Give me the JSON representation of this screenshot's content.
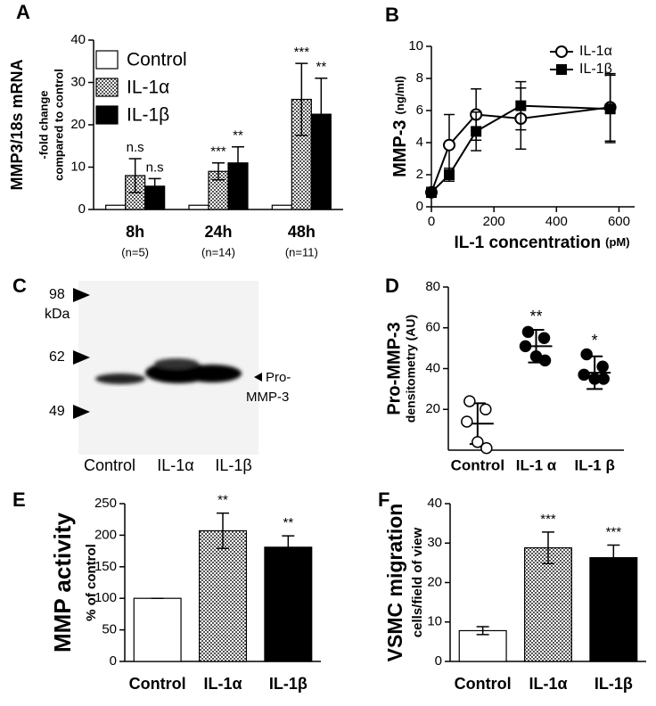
{
  "chart_data": [
    {
      "type": "bar",
      "panel": "A",
      "ylabel": [
        "MMP3/18s mRNA",
        "-fold change",
        "compared to control"
      ],
      "categories": [
        "8h",
        "24h",
        "48h"
      ],
      "sublabels": [
        "(n=5)",
        "(n=14)",
        "(n=11)"
      ],
      "series": [
        {
          "name": "Control",
          "color": "#ffffff",
          "values": [
            1,
            1,
            1
          ]
        },
        {
          "name": "IL-1α",
          "color": "#9a9a9a",
          "pattern": "checker",
          "values": [
            8,
            9,
            26
          ],
          "errors": [
            4,
            2,
            8.5
          ],
          "annotations": [
            "n.s",
            "***",
            "***"
          ]
        },
        {
          "name": "IL-1β",
          "color": "#000000",
          "values": [
            5.5,
            11,
            22.5
          ],
          "errors": [
            1.8,
            3.8,
            8.5
          ],
          "annotations": [
            "n.s",
            "**",
            "**"
          ]
        }
      ],
      "ylim": [
        0,
        40
      ],
      "yticks": [
        0,
        10,
        20,
        30,
        40
      ],
      "legend": "top-left"
    },
    {
      "type": "line",
      "panel": "B",
      "ylabel": [
        "MMP-3",
        "(ng/ml)"
      ],
      "xlabel": [
        "IL-1 concentration",
        "(pM)"
      ],
      "x": [
        0,
        57,
        143,
        286,
        572
      ],
      "series": [
        {
          "name": "IL-1α",
          "color": "#000000",
          "marker": "circle-open",
          "values": [
            0.9,
            3.85,
            5.75,
            5.5,
            6.2
          ],
          "errors": [
            0.3,
            1.9,
            1.6,
            1.9,
            2.1
          ]
        },
        {
          "name": "IL-1β",
          "color": "#000000",
          "marker": "square",
          "values": [
            0.9,
            2.0,
            4.7,
            6.3,
            6.1
          ],
          "errors": [
            0.3,
            0.4,
            1.2,
            1.5,
            2.1
          ]
        }
      ],
      "xlim": [
        0,
        650
      ],
      "xticks": [
        0,
        200,
        400,
        600
      ],
      "ylim": [
        0,
        10
      ],
      "yticks": [
        0,
        2,
        4,
        6,
        8,
        10
      ],
      "legend": "top-right"
    },
    {
      "type": "dot",
      "panel": "D",
      "ylabel": [
        "Pro-MMP-3",
        "densitometry (AU)"
      ],
      "categories": [
        "Control",
        "IL-1 α",
        "IL-1 β"
      ],
      "points": [
        [
          24,
          20,
          14,
          4,
          1
        ],
        [
          58,
          55,
          51,
          46,
          44
        ],
        [
          47,
          41,
          37,
          35,
          35
        ]
      ],
      "fills": [
        "#ffffff",
        "#000000",
        "#000000"
      ],
      "means": [
        13,
        51,
        38
      ],
      "sds": [
        10,
        8,
        8
      ],
      "annotations": [
        null,
        "**",
        "*"
      ],
      "ylim": [
        0,
        80
      ],
      "yticks": [
        20,
        40,
        60,
        80
      ]
    },
    {
      "type": "bar",
      "panel": "E",
      "ylabel": [
        "MMP activity",
        "% of control"
      ],
      "categories": [
        "Control",
        "IL-1α",
        "IL-1β"
      ],
      "values": [
        100,
        207,
        181
      ],
      "errors": [
        0,
        28,
        18
      ],
      "annotations": [
        null,
        "**",
        "**"
      ],
      "bar_styles": [
        {
          "color": "#ffffff"
        },
        {
          "color": "#9a9a9a",
          "pattern": "checker"
        },
        {
          "color": "#000000"
        }
      ],
      "ylim": [
        0,
        250
      ],
      "yticks": [
        0,
        50,
        100,
        150,
        200,
        250
      ]
    },
    {
      "type": "bar",
      "panel": "F",
      "ylabel": [
        "VSMC migration",
        "cells/field of view"
      ],
      "categories": [
        "Control",
        "IL-1α",
        "IL-1β"
      ],
      "values": [
        7.8,
        28.8,
        26.3
      ],
      "errors": [
        1,
        4,
        3.2
      ],
      "annotations": [
        null,
        "***",
        "***"
      ],
      "bar_styles": [
        {
          "color": "#ffffff"
        },
        {
          "color": "#9a9a9a",
          "pattern": "checker"
        },
        {
          "color": "#000000"
        }
      ],
      "ylim": [
        0,
        40
      ],
      "yticks": [
        0,
        10,
        20,
        30,
        40
      ]
    }
  ],
  "blot": {
    "panel": "C",
    "markers": [
      "98",
      "kDa",
      "62",
      "49"
    ],
    "band_label": [
      "Pro-",
      "MMP-3"
    ],
    "lanes": [
      "Control",
      "IL-1α",
      "IL-1β"
    ]
  }
}
